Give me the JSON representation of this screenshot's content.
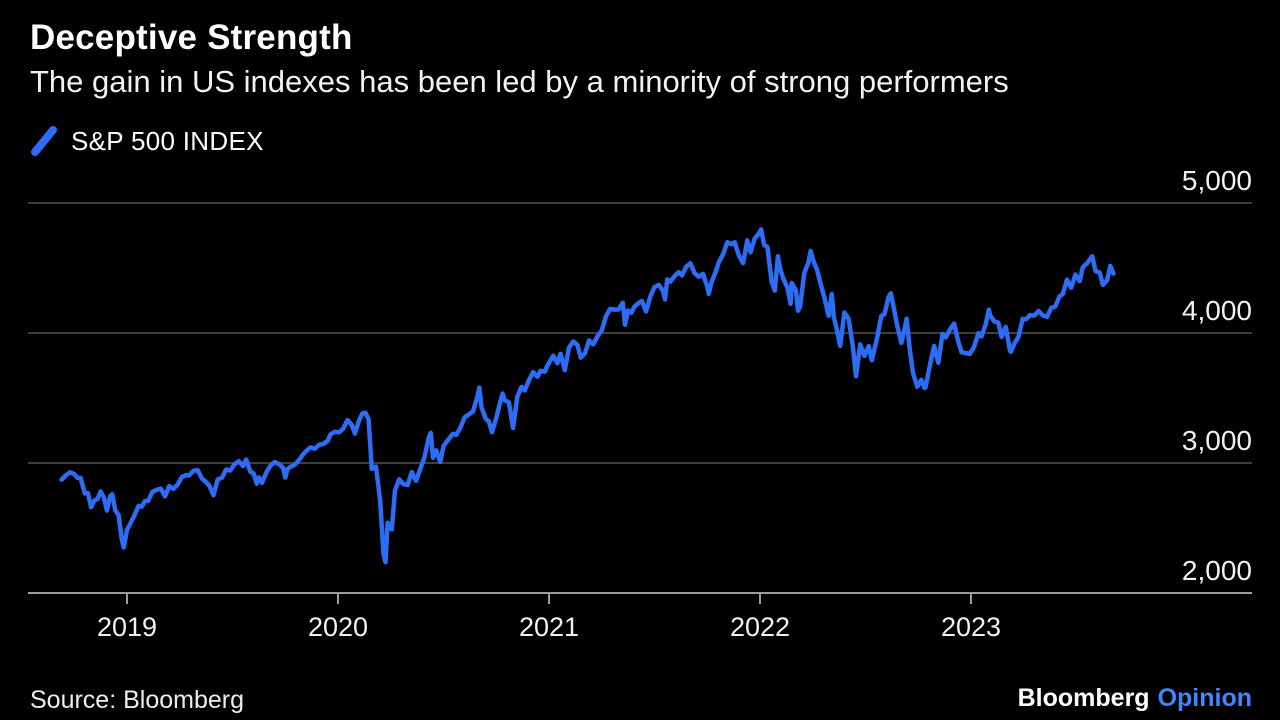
{
  "header": {
    "title": "Deceptive Strength",
    "subtitle": "The gain in US indexes has been led by a minority of strong performers"
  },
  "legend": {
    "label": "S&P 500 INDEX"
  },
  "footer": {
    "source": "Source: Bloomberg",
    "brand_name": "Bloomberg",
    "brand_suffix": "Opinion"
  },
  "colors": {
    "background": "#000000",
    "line": "#2d6cf5",
    "gridline": "#3d3e40",
    "axis": "#9a9b9d",
    "text": "#ffffff",
    "brand_suffix": "#4086ff"
  },
  "chart_data": {
    "type": "line",
    "title": "Deceptive Strength",
    "subtitle": "The gain in US indexes has been led by a minority of strong performers",
    "xlabel": "",
    "ylabel": "",
    "grid": "horizontal",
    "legend_position": "top-left",
    "ylabel_side": "right",
    "x_domain": [
      2018.68,
      2023.72
    ],
    "y_domain": [
      2000,
      5150
    ],
    "x_ticks": [
      {
        "value": 2019,
        "label": "2019"
      },
      {
        "value": 2020,
        "label": "2020"
      },
      {
        "value": 2021,
        "label": "2021"
      },
      {
        "value": 2022,
        "label": "2022"
      },
      {
        "value": 2023,
        "label": "2023"
      }
    ],
    "y_ticks": [
      {
        "value": 2000,
        "label": "2,000"
      },
      {
        "value": 3000,
        "label": "3,000"
      },
      {
        "value": 4000,
        "label": "4,000"
      },
      {
        "value": 5000,
        "label": "5,000"
      }
    ],
    "series": [
      {
        "name": "S&P 500 INDEX",
        "color": "#2d6cf5",
        "points": [
          [
            2018.69,
            2872
          ],
          [
            2018.71,
            2905
          ],
          [
            2018.73,
            2930
          ],
          [
            2018.75,
            2914
          ],
          [
            2018.765,
            2886
          ],
          [
            2018.78,
            2885
          ],
          [
            2018.8,
            2767
          ],
          [
            2018.815,
            2768
          ],
          [
            2018.83,
            2659
          ],
          [
            2018.845,
            2711
          ],
          [
            2018.86,
            2723
          ],
          [
            2018.875,
            2781
          ],
          [
            2018.89,
            2736
          ],
          [
            2018.905,
            2633
          ],
          [
            2018.92,
            2743
          ],
          [
            2018.93,
            2760
          ],
          [
            2018.945,
            2633
          ],
          [
            2018.96,
            2600
          ],
          [
            2018.975,
            2417
          ],
          [
            2018.985,
            2351
          ],
          [
            2019.0,
            2486
          ],
          [
            2019.015,
            2532
          ],
          [
            2019.035,
            2596
          ],
          [
            2019.055,
            2671
          ],
          [
            2019.07,
            2665
          ],
          [
            2019.085,
            2707
          ],
          [
            2019.1,
            2708
          ],
          [
            2019.12,
            2776
          ],
          [
            2019.14,
            2793
          ],
          [
            2019.16,
            2803
          ],
          [
            2019.18,
            2743
          ],
          [
            2019.2,
            2822
          ],
          [
            2019.22,
            2801
          ],
          [
            2019.24,
            2834
          ],
          [
            2019.26,
            2893
          ],
          [
            2019.28,
            2907
          ],
          [
            2019.295,
            2905
          ],
          [
            2019.315,
            2940
          ],
          [
            2019.335,
            2945
          ],
          [
            2019.355,
            2881
          ],
          [
            2019.37,
            2860
          ],
          [
            2019.39,
            2826
          ],
          [
            2019.41,
            2752
          ],
          [
            2019.43,
            2873
          ],
          [
            2019.45,
            2887
          ],
          [
            2019.47,
            2950
          ],
          [
            2019.49,
            2942
          ],
          [
            2019.51,
            2990
          ],
          [
            2019.53,
            3014
          ],
          [
            2019.55,
            2977
          ],
          [
            2019.565,
            3026
          ],
          [
            2019.585,
            2932
          ],
          [
            2019.6,
            2919
          ],
          [
            2019.615,
            2841
          ],
          [
            2019.625,
            2889
          ],
          [
            2019.64,
            2847
          ],
          [
            2019.66,
            2926
          ],
          [
            2019.68,
            2979
          ],
          [
            2019.7,
            3007
          ],
          [
            2019.72,
            2992
          ],
          [
            2019.74,
            2962
          ],
          [
            2019.75,
            2888
          ],
          [
            2019.76,
            2952
          ],
          [
            2019.775,
            2970
          ],
          [
            2019.795,
            2986
          ],
          [
            2019.815,
            3023
          ],
          [
            2019.835,
            3067
          ],
          [
            2019.85,
            3093
          ],
          [
            2019.87,
            3120
          ],
          [
            2019.89,
            3110
          ],
          [
            2019.91,
            3141
          ],
          [
            2019.93,
            3146
          ],
          [
            2019.95,
            3169
          ],
          [
            2019.965,
            3221
          ],
          [
            2019.985,
            3240
          ],
          [
            2020.005,
            3235
          ],
          [
            2020.025,
            3265
          ],
          [
            2020.045,
            3330
          ],
          [
            2020.065,
            3295
          ],
          [
            2020.08,
            3226
          ],
          [
            2020.1,
            3328
          ],
          [
            2020.115,
            3380
          ],
          [
            2020.13,
            3386
          ],
          [
            2020.145,
            3338
          ],
          [
            2020.16,
            2954
          ],
          [
            2020.18,
            2972
          ],
          [
            2020.2,
            2711
          ],
          [
            2020.215,
            2305
          ],
          [
            2020.225,
            2237
          ],
          [
            2020.235,
            2541
          ],
          [
            2020.255,
            2489
          ],
          [
            2020.27,
            2790
          ],
          [
            2020.29,
            2875
          ],
          [
            2020.31,
            2837
          ],
          [
            2020.33,
            2831
          ],
          [
            2020.35,
            2930
          ],
          [
            2020.37,
            2864
          ],
          [
            2020.39,
            2955
          ],
          [
            2020.41,
            3044
          ],
          [
            2020.43,
            3194
          ],
          [
            2020.44,
            3232
          ],
          [
            2020.45,
            3041
          ],
          [
            2020.465,
            3098
          ],
          [
            2020.485,
            3009
          ],
          [
            2020.5,
            3130
          ],
          [
            2020.525,
            3185
          ],
          [
            2020.545,
            3225
          ],
          [
            2020.56,
            3216
          ],
          [
            2020.58,
            3271
          ],
          [
            2020.6,
            3351
          ],
          [
            2020.62,
            3373
          ],
          [
            2020.64,
            3397
          ],
          [
            2020.66,
            3508
          ],
          [
            2020.67,
            3580
          ],
          [
            2020.68,
            3427
          ],
          [
            2020.7,
            3341
          ],
          [
            2020.715,
            3319
          ],
          [
            2020.73,
            3237
          ],
          [
            2020.75,
            3348
          ],
          [
            2020.77,
            3477
          ],
          [
            2020.78,
            3534
          ],
          [
            2020.79,
            3484
          ],
          [
            2020.81,
            3465
          ],
          [
            2020.83,
            3270
          ],
          [
            2020.85,
            3509
          ],
          [
            2020.87,
            3585
          ],
          [
            2020.885,
            3558
          ],
          [
            2020.905,
            3638
          ],
          [
            2020.925,
            3699
          ],
          [
            2020.945,
            3663
          ],
          [
            2020.96,
            3709
          ],
          [
            2020.98,
            3703
          ],
          [
            2020.995,
            3756
          ],
          [
            2021.02,
            3825
          ],
          [
            2021.04,
            3768
          ],
          [
            2021.055,
            3841
          ],
          [
            2021.075,
            3714
          ],
          [
            2021.095,
            3887
          ],
          [
            2021.115,
            3935
          ],
          [
            2021.135,
            3907
          ],
          [
            2021.15,
            3811
          ],
          [
            2021.17,
            3842
          ],
          [
            2021.19,
            3943
          ],
          [
            2021.21,
            3913
          ],
          [
            2021.23,
            3975
          ],
          [
            2021.25,
            4020
          ],
          [
            2021.27,
            4129
          ],
          [
            2021.29,
            4185
          ],
          [
            2021.31,
            4180
          ],
          [
            2021.33,
            4181
          ],
          [
            2021.35,
            4233
          ],
          [
            2021.36,
            4063
          ],
          [
            2021.375,
            4174
          ],
          [
            2021.39,
            4156
          ],
          [
            2021.405,
            4204
          ],
          [
            2021.425,
            4230
          ],
          [
            2021.44,
            4247
          ],
          [
            2021.46,
            4166
          ],
          [
            2021.48,
            4281
          ],
          [
            2021.5,
            4352
          ],
          [
            2021.52,
            4370
          ],
          [
            2021.54,
            4327
          ],
          [
            2021.55,
            4258
          ],
          [
            2021.56,
            4412
          ],
          [
            2021.575,
            4395
          ],
          [
            2021.595,
            4437
          ],
          [
            2021.615,
            4468
          ],
          [
            2021.63,
            4442
          ],
          [
            2021.65,
            4509
          ],
          [
            2021.67,
            4537
          ],
          [
            2021.69,
            4459
          ],
          [
            2021.71,
            4433
          ],
          [
            2021.73,
            4455
          ],
          [
            2021.75,
            4357
          ],
          [
            2021.757,
            4300
          ],
          [
            2021.77,
            4391
          ],
          [
            2021.79,
            4471
          ],
          [
            2021.805,
            4545
          ],
          [
            2021.825,
            4605
          ],
          [
            2021.845,
            4698
          ],
          [
            2021.865,
            4683
          ],
          [
            2021.88,
            4698
          ],
          [
            2021.9,
            4595
          ],
          [
            2021.92,
            4538
          ],
          [
            2021.94,
            4712
          ],
          [
            2021.955,
            4621
          ],
          [
            2021.975,
            4726
          ],
          [
            2021.995,
            4766
          ],
          [
            2022.005,
            4797
          ],
          [
            2022.02,
            4677
          ],
          [
            2022.035,
            4663
          ],
          [
            2022.055,
            4398
          ],
          [
            2022.07,
            4326
          ],
          [
            2022.085,
            4589
          ],
          [
            2022.095,
            4501
          ],
          [
            2022.11,
            4419
          ],
          [
            2022.13,
            4349
          ],
          [
            2022.145,
            4225
          ],
          [
            2022.15,
            4385
          ],
          [
            2022.17,
            4329
          ],
          [
            2022.18,
            4171
          ],
          [
            2022.19,
            4204
          ],
          [
            2022.21,
            4463
          ],
          [
            2022.23,
            4543
          ],
          [
            2022.24,
            4631
          ],
          [
            2022.255,
            4546
          ],
          [
            2022.27,
            4488
          ],
          [
            2022.285,
            4393
          ],
          [
            2022.305,
            4272
          ],
          [
            2022.325,
            4132
          ],
          [
            2022.34,
            4300
          ],
          [
            2022.35,
            4123
          ],
          [
            2022.365,
            4024
          ],
          [
            2022.38,
            3901
          ],
          [
            2022.4,
            4158
          ],
          [
            2022.42,
            4109
          ],
          [
            2022.44,
            3901
          ],
          [
            2022.455,
            3667
          ],
          [
            2022.475,
            3912
          ],
          [
            2022.495,
            3825
          ],
          [
            2022.515,
            3899
          ],
          [
            2022.53,
            3790
          ],
          [
            2022.555,
            3962
          ],
          [
            2022.575,
            4130
          ],
          [
            2022.59,
            4145
          ],
          [
            2022.61,
            4280
          ],
          [
            2022.62,
            4305
          ],
          [
            2022.63,
            4228
          ],
          [
            2022.65,
            4058
          ],
          [
            2022.67,
            3924
          ],
          [
            2022.69,
            4067
          ],
          [
            2022.695,
            4110
          ],
          [
            2022.71,
            3873
          ],
          [
            2022.725,
            3693
          ],
          [
            2022.745,
            3586
          ],
          [
            2022.765,
            3640
          ],
          [
            2022.78,
            3577
          ],
          [
            2022.785,
            3583
          ],
          [
            2022.805,
            3753
          ],
          [
            2022.825,
            3901
          ],
          [
            2022.845,
            3771
          ],
          [
            2022.865,
            3993
          ],
          [
            2022.88,
            3965
          ],
          [
            2022.9,
            4026
          ],
          [
            2022.92,
            4072
          ],
          [
            2022.94,
            3934
          ],
          [
            2022.955,
            3852
          ],
          [
            2022.975,
            3845
          ],
          [
            2022.995,
            3840
          ],
          [
            2023.015,
            3895
          ],
          [
            2023.035,
            3999
          ],
          [
            2023.05,
            3973
          ],
          [
            2023.07,
            4071
          ],
          [
            2023.085,
            4180
          ],
          [
            2023.09,
            4136
          ],
          [
            2023.11,
            4090
          ],
          [
            2023.13,
            4079
          ],
          [
            2023.145,
            3970
          ],
          [
            2023.165,
            4046
          ],
          [
            2023.185,
            3862
          ],
          [
            2023.19,
            3856
          ],
          [
            2023.205,
            3917
          ],
          [
            2023.225,
            3971
          ],
          [
            2023.245,
            4109
          ],
          [
            2023.26,
            4105
          ],
          [
            2023.28,
            4138
          ],
          [
            2023.3,
            4134
          ],
          [
            2023.32,
            4169
          ],
          [
            2023.34,
            4136
          ],
          [
            2023.36,
            4124
          ],
          [
            2023.38,
            4192
          ],
          [
            2023.4,
            4205
          ],
          [
            2023.42,
            4282
          ],
          [
            2023.435,
            4299
          ],
          [
            2023.455,
            4410
          ],
          [
            2023.475,
            4348
          ],
          [
            2023.495,
            4450
          ],
          [
            2023.515,
            4399
          ],
          [
            2023.53,
            4505
          ],
          [
            2023.55,
            4536
          ],
          [
            2023.57,
            4582
          ],
          [
            2023.575,
            4589
          ],
          [
            2023.59,
            4478
          ],
          [
            2023.61,
            4464
          ],
          [
            2023.625,
            4370
          ],
          [
            2023.645,
            4406
          ],
          [
            2023.66,
            4516
          ],
          [
            2023.675,
            4457
          ]
        ]
      }
    ]
  }
}
